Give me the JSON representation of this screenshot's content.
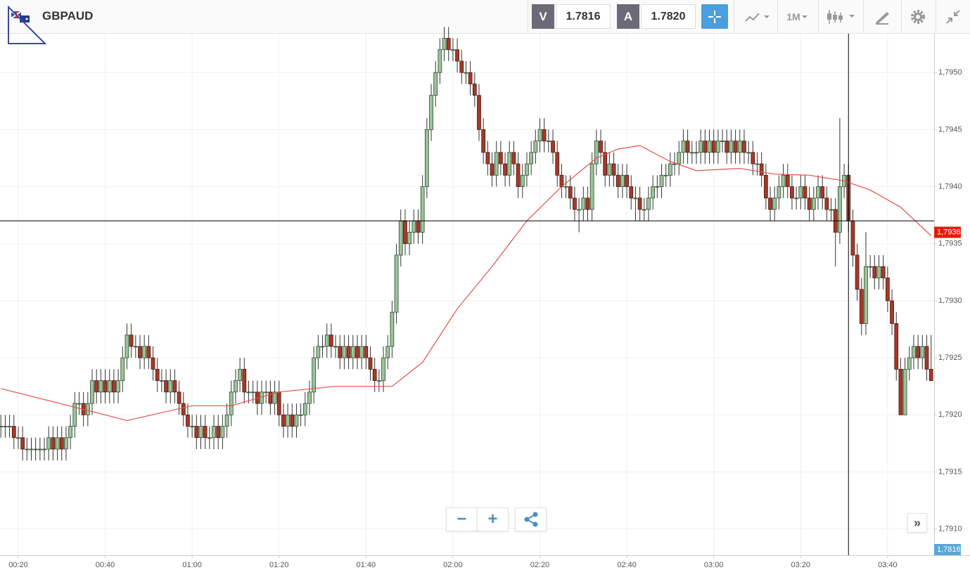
{
  "toolbar": {
    "symbol": "GBPAUD",
    "sell_label": "V",
    "sell_price": "1.7816",
    "buy_label": "A",
    "buy_price": "1.7820",
    "timeframe": "1M"
  },
  "chart_data": {
    "type": "candlestick",
    "x": [
      16,
      17,
      18,
      19,
      20,
      21,
      22,
      23,
      24,
      25,
      26,
      27,
      28,
      29,
      30,
      31,
      32,
      33,
      34,
      35,
      36,
      37,
      38,
      39,
      40,
      41,
      42,
      43,
      44,
      45,
      46,
      47,
      48,
      49,
      50,
      51,
      52,
      53,
      54,
      55,
      56,
      57,
      58,
      59,
      60,
      61,
      62,
      63,
      64,
      65,
      66,
      67,
      68,
      69,
      70,
      71,
      72,
      73,
      74,
      75,
      76,
      77,
      78,
      79,
      80,
      81,
      82,
      83,
      84,
      85,
      86,
      87,
      88,
      89,
      90,
      91,
      92,
      93,
      94,
      95,
      96,
      97,
      98,
      99,
      100,
      101,
      102,
      103,
      104,
      105,
      106,
      107,
      108,
      109,
      110,
      111,
      112,
      113,
      114,
      115,
      116,
      117,
      118,
      119,
      120,
      121,
      122,
      123,
      124,
      125,
      126,
      127,
      128,
      129,
      130,
      131,
      132,
      133,
      134,
      135,
      136,
      137,
      138,
      139,
      140,
      141,
      142,
      143,
      144,
      145,
      146,
      147,
      148,
      149,
      150,
      151,
      152,
      153,
      154,
      155,
      156,
      157,
      158,
      159,
      160,
      161,
      162,
      163,
      164,
      165,
      166,
      167,
      168,
      169,
      170,
      171,
      172,
      173,
      174,
      175,
      176,
      177,
      178,
      179,
      180,
      181,
      182,
      183,
      184,
      185,
      186,
      187,
      188,
      189,
      190,
      191,
      192,
      193,
      194,
      195,
      196,
      197,
      198,
      199,
      200,
      201,
      202,
      203,
      204,
      205,
      206,
      207,
      208,
      209,
      210,
      211,
      212,
      213,
      214,
      215,
      216,
      217,
      218,
      219,
      220,
      221,
      222,
      223,
      224,
      225,
      226,
      227,
      228,
      229,
      230
    ],
    "open": [
      1.7919,
      1.7919,
      1.7919,
      1.7919,
      1.7918,
      1.7918,
      1.7917,
      1.7917,
      1.7917,
      1.7917,
      1.7917,
      1.7917,
      1.7918,
      1.7917,
      1.7918,
      1.7917,
      1.7918,
      1.7919,
      1.7921,
      1.7921,
      1.792,
      1.7921,
      1.7923,
      1.7922,
      1.7923,
      1.7922,
      1.7923,
      1.7922,
      1.7923,
      1.7925,
      1.7927,
      1.7926,
      1.7926,
      1.7925,
      1.7926,
      1.7925,
      1.7924,
      1.7923,
      1.7923,
      1.7922,
      1.7923,
      1.7922,
      1.7921,
      1.792,
      1.7919,
      1.7919,
      1.7918,
      1.7919,
      1.7918,
      1.7918,
      1.7919,
      1.7918,
      1.7919,
      1.792,
      1.7922,
      1.7923,
      1.7924,
      1.7922,
      1.7922,
      1.7922,
      1.7921,
      1.7922,
      1.7922,
      1.7921,
      1.7922,
      1.792,
      1.7919,
      1.792,
      1.7919,
      1.792,
      1.792,
      1.7921,
      1.7922,
      1.7925,
      1.7926,
      1.7926,
      1.7927,
      1.7926,
      1.7926,
      1.7925,
      1.7926,
      1.7925,
      1.7926,
      1.7925,
      1.7926,
      1.7925,
      1.7924,
      1.7923,
      1.7923,
      1.7925,
      1.7926,
      1.7929,
      1.7934,
      1.7937,
      1.7935,
      1.7936,
      1.7937,
      1.7936,
      1.794,
      1.7945,
      1.7948,
      1.795,
      1.7952,
      1.7953,
      1.7952,
      1.7952,
      1.7951,
      1.795,
      1.795,
      1.7949,
      1.7948,
      1.7945,
      1.7943,
      1.7942,
      1.7941,
      1.7943,
      1.7942,
      1.7941,
      1.7943,
      1.7942,
      1.794,
      1.7941,
      1.7942,
      1.7943,
      1.7944,
      1.7945,
      1.7944,
      1.7944,
      1.7943,
      1.7941,
      1.794,
      1.794,
      1.7939,
      1.7938,
      1.7938,
      1.7939,
      1.7938,
      1.7942,
      1.7944,
      1.7943,
      1.7941,
      1.7942,
      1.7941,
      1.794,
      1.7941,
      1.794,
      1.7939,
      1.7939,
      1.7938,
      1.7938,
      1.7939,
      1.794,
      1.794,
      1.7941,
      1.7941,
      1.7942,
      1.7942,
      1.7943,
      1.7944,
      1.7943,
      1.7943,
      1.7943,
      1.7944,
      1.7943,
      1.7944,
      1.7943,
      1.7944,
      1.7944,
      1.7943,
      1.7944,
      1.7943,
      1.7944,
      1.7943,
      1.7943,
      1.7942,
      1.7942,
      1.7941,
      1.7939,
      1.7938,
      1.7939,
      1.794,
      1.7941,
      1.794,
      1.7939,
      1.7939,
      1.794,
      1.7939,
      1.7938,
      1.7939,
      1.794,
      1.7939,
      1.7938,
      1.7938,
      1.7936,
      1.794,
      1.7941,
      1.7937,
      1.7934,
      1.7931,
      1.7928,
      1.7933,
      1.7933,
      1.7932,
      1.7933,
      1.7932,
      1.793,
      1.7928,
      1.7924,
      1.792,
      1.7924,
      1.7925,
      1.7926,
      1.7925,
      1.7926,
      1.7924
    ],
    "high": [
      1.792,
      1.792,
      1.792,
      1.792,
      1.7919,
      1.7919,
      1.7918,
      1.7918,
      1.7918,
      1.7918,
      1.7918,
      1.7919,
      1.7919,
      1.7919,
      1.7919,
      1.7919,
      1.792,
      1.7922,
      1.7922,
      1.7922,
      1.7922,
      1.7924,
      1.7924,
      1.7924,
      1.7924,
      1.7924,
      1.7924,
      1.7924,
      1.7926,
      1.7928,
      1.7928,
      1.7927,
      1.7927,
      1.7927,
      1.7927,
      1.7926,
      1.7925,
      1.7924,
      1.7924,
      1.7924,
      1.7924,
      1.7923,
      1.7922,
      1.7921,
      1.792,
      1.792,
      1.792,
      1.792,
      1.7919,
      1.792,
      1.792,
      1.792,
      1.7921,
      1.7923,
      1.7924,
      1.7925,
      1.7925,
      1.7923,
      1.7923,
      1.7923,
      1.7923,
      1.7923,
      1.7923,
      1.7923,
      1.7923,
      1.7921,
      1.7921,
      1.7921,
      1.7921,
      1.7921,
      1.7922,
      1.7923,
      1.7926,
      1.7927,
      1.7927,
      1.7928,
      1.7928,
      1.7927,
      1.7927,
      1.7927,
      1.7927,
      1.7927,
      1.7927,
      1.7927,
      1.7927,
      1.7926,
      1.7925,
      1.7924,
      1.7926,
      1.7927,
      1.793,
      1.7935,
      1.7938,
      1.7938,
      1.7937,
      1.7938,
      1.7938,
      1.7941,
      1.7946,
      1.7949,
      1.7951,
      1.7953,
      1.7954,
      1.7954,
      1.7953,
      1.7953,
      1.7952,
      1.7951,
      1.7951,
      1.795,
      1.7949,
      1.7946,
      1.7944,
      1.7943,
      1.7944,
      1.7944,
      1.7943,
      1.7944,
      1.7944,
      1.7943,
      1.7942,
      1.7943,
      1.7944,
      1.7945,
      1.7946,
      1.7946,
      1.7945,
      1.7945,
      1.7944,
      1.7942,
      1.7941,
      1.7941,
      1.794,
      1.7939,
      1.794,
      1.794,
      1.7943,
      1.7945,
      1.7945,
      1.7944,
      1.7943,
      1.7943,
      1.7942,
      1.7942,
      1.7942,
      1.7941,
      1.794,
      1.794,
      1.7939,
      1.794,
      1.7941,
      1.7941,
      1.7942,
      1.7942,
      1.7943,
      1.7943,
      1.7944,
      1.7945,
      1.7945,
      1.7944,
      1.7944,
      1.7945,
      1.7945,
      1.7945,
      1.7945,
      1.7945,
      1.7945,
      1.7945,
      1.7945,
      1.7945,
      1.7945,
      1.7945,
      1.7944,
      1.7944,
      1.7943,
      1.7943,
      1.7942,
      1.794,
      1.794,
      1.7941,
      1.7942,
      1.7942,
      1.7941,
      1.794,
      1.7941,
      1.7941,
      1.794,
      1.794,
      1.7941,
      1.7941,
      1.794,
      1.7939,
      1.7939,
      1.7946,
      1.7942,
      1.7942,
      1.7938,
      1.7935,
      1.7932,
      1.7936,
      1.7934,
      1.7934,
      1.7934,
      1.7934,
      1.7933,
      1.7931,
      1.7929,
      1.7925,
      1.7925,
      1.7926,
      1.7927,
      1.7927,
      1.7927,
      1.7927,
      1.7927
    ],
    "low": [
      1.7918,
      1.7918,
      1.7918,
      1.7917,
      1.7917,
      1.7916,
      1.7916,
      1.7916,
      1.7916,
      1.7916,
      1.7916,
      1.7916,
      1.7916,
      1.7916,
      1.7916,
      1.7916,
      1.7917,
      1.7918,
      1.792,
      1.7919,
      1.7919,
      1.792,
      1.7921,
      1.7921,
      1.7921,
      1.7921,
      1.7921,
      1.7921,
      1.7922,
      1.7924,
      1.7925,
      1.7925,
      1.7924,
      1.7924,
      1.7924,
      1.7923,
      1.7922,
      1.7922,
      1.7921,
      1.7921,
      1.7921,
      1.792,
      1.7919,
      1.7918,
      1.7918,
      1.7917,
      1.7917,
      1.7917,
      1.7917,
      1.7917,
      1.7917,
      1.7917,
      1.7918,
      1.7919,
      1.7921,
      1.7922,
      1.7921,
      1.7921,
      1.7921,
      1.792,
      1.792,
      1.7921,
      1.792,
      1.792,
      1.7919,
      1.7918,
      1.7918,
      1.7918,
      1.7918,
      1.7919,
      1.7919,
      1.792,
      1.7921,
      1.7924,
      1.7925,
      1.7925,
      1.7925,
      1.7925,
      1.7924,
      1.7924,
      1.7924,
      1.7924,
      1.7924,
      1.7924,
      1.7924,
      1.7923,
      1.7922,
      1.7922,
      1.7922,
      1.7924,
      1.7925,
      1.7928,
      1.7933,
      1.7934,
      1.7934,
      1.7935,
      1.7935,
      1.7935,
      1.7939,
      1.7944,
      1.7947,
      1.7949,
      1.7951,
      1.7951,
      1.7951,
      1.795,
      1.7949,
      1.7949,
      1.7948,
      1.7947,
      1.7944,
      1.7942,
      1.7941,
      1.794,
      1.794,
      1.7941,
      1.794,
      1.794,
      1.7941,
      1.7939,
      1.7939,
      1.794,
      1.7941,
      1.7942,
      1.7943,
      1.7943,
      1.7943,
      1.7942,
      1.794,
      1.7939,
      1.7939,
      1.7938,
      1.7937,
      1.7936,
      1.7937,
      1.7937,
      1.7937,
      1.7941,
      1.7942,
      1.794,
      1.794,
      1.794,
      1.7939,
      1.7939,
      1.7939,
      1.7938,
      1.7937,
      1.7937,
      1.7937,
      1.7937,
      1.7938,
      1.7939,
      1.7939,
      1.794,
      1.794,
      1.7941,
      1.7941,
      1.7942,
      1.7942,
      1.7942,
      1.7942,
      1.7942,
      1.7942,
      1.7942,
      1.7942,
      1.7942,
      1.7943,
      1.7942,
      1.7942,
      1.7942,
      1.7942,
      1.7942,
      1.7942,
      1.7941,
      1.7941,
      1.794,
      1.7938,
      1.7937,
      1.7937,
      1.7938,
      1.7939,
      1.7939,
      1.7938,
      1.7938,
      1.7938,
      1.7938,
      1.7937,
      1.7937,
      1.7938,
      1.7938,
      1.7937,
      1.7937,
      1.7933,
      1.7935,
      1.7939,
      1.7936,
      1.7933,
      1.793,
      1.7927,
      1.7927,
      1.7932,
      1.7931,
      1.7931,
      1.7931,
      1.7929,
      1.7927,
      1.7923,
      1.792,
      1.792,
      1.7923,
      1.7924,
      1.7924,
      1.7924,
      1.7923,
      1.7923
    ],
    "close": [
      1.7919,
      1.7919,
      1.7919,
      1.7918,
      1.7918,
      1.7917,
      1.7917,
      1.7917,
      1.7917,
      1.7917,
      1.7917,
      1.7918,
      1.7917,
      1.7918,
      1.7917,
      1.7918,
      1.7919,
      1.7921,
      1.7921,
      1.792,
      1.7921,
      1.7923,
      1.7922,
      1.7923,
      1.7922,
      1.7923,
      1.7922,
      1.7923,
      1.7925,
      1.7927,
      1.7926,
      1.7926,
      1.7925,
      1.7926,
      1.7925,
      1.7924,
      1.7923,
      1.7923,
      1.7922,
      1.7923,
      1.7922,
      1.7921,
      1.792,
      1.7919,
      1.7919,
      1.7918,
      1.7919,
      1.7918,
      1.7918,
      1.7919,
      1.7918,
      1.7919,
      1.792,
      1.7922,
      1.7923,
      1.7924,
      1.7922,
      1.7922,
      1.7922,
      1.7921,
      1.7922,
      1.7922,
      1.7921,
      1.7922,
      1.792,
      1.7919,
      1.792,
      1.7919,
      1.792,
      1.792,
      1.7921,
      1.7922,
      1.7925,
      1.7926,
      1.7926,
      1.7927,
      1.7926,
      1.7926,
      1.7925,
      1.7926,
      1.7925,
      1.7926,
      1.7925,
      1.7926,
      1.7925,
      1.7924,
      1.7923,
      1.7923,
      1.7925,
      1.7926,
      1.7929,
      1.7934,
      1.7937,
      1.7935,
      1.7936,
      1.7937,
      1.7936,
      1.794,
      1.7945,
      1.7948,
      1.795,
      1.7952,
      1.7953,
      1.7952,
      1.7952,
      1.7951,
      1.795,
      1.795,
      1.7949,
      1.7948,
      1.7945,
      1.7943,
      1.7942,
      1.7941,
      1.7943,
      1.7942,
      1.7941,
      1.7943,
      1.7942,
      1.794,
      1.7941,
      1.7942,
      1.7943,
      1.7944,
      1.7945,
      1.7944,
      1.7944,
      1.7943,
      1.7941,
      1.794,
      1.794,
      1.7939,
      1.7938,
      1.7938,
      1.7939,
      1.7938,
      1.7942,
      1.7944,
      1.7943,
      1.7941,
      1.7942,
      1.7941,
      1.794,
      1.7941,
      1.794,
      1.7939,
      1.7939,
      1.7938,
      1.7938,
      1.7939,
      1.794,
      1.794,
      1.7941,
      1.7941,
      1.7942,
      1.7942,
      1.7943,
      1.7944,
      1.7943,
      1.7943,
      1.7943,
      1.7944,
      1.7943,
      1.7944,
      1.7943,
      1.7944,
      1.7944,
      1.7943,
      1.7944,
      1.7943,
      1.7944,
      1.7943,
      1.7943,
      1.7942,
      1.7942,
      1.7941,
      1.7939,
      1.7938,
      1.7939,
      1.794,
      1.7941,
      1.794,
      1.7939,
      1.7939,
      1.794,
      1.7939,
      1.7938,
      1.7939,
      1.794,
      1.7939,
      1.7938,
      1.7938,
      1.7936,
      1.794,
      1.7941,
      1.7937,
      1.7934,
      1.7931,
      1.7928,
      1.7933,
      1.7933,
      1.7932,
      1.7933,
      1.7932,
      1.793,
      1.7928,
      1.7924,
      1.792,
      1.7924,
      1.7925,
      1.7926,
      1.7925,
      1.7926,
      1.7924,
      1.7923
    ],
    "up_color": "#9cc49a",
    "down_color": "#a33a2a",
    "overlay": {
      "color": "#e0504a",
      "x": [
        16,
        40,
        45,
        60,
        69,
        80,
        93,
        106,
        113,
        121,
        129,
        137,
        145,
        153,
        158,
        163,
        170,
        176,
        186,
        194,
        202,
        210,
        216,
        223,
        230
      ],
      "values": [
        1.79223,
        1.792,
        1.79195,
        1.79208,
        1.79208,
        1.7922,
        1.79225,
        1.79225,
        1.79246,
        1.79293,
        1.7933,
        1.7937,
        1.794,
        1.79425,
        1.79433,
        1.79436,
        1.79422,
        1.79414,
        1.79416,
        1.79411,
        1.7941,
        1.79405,
        1.79397,
        1.79382,
        1.79357
      ]
    },
    "xlim": [
      15.8,
      230.7
    ],
    "ylim": [
      1.79077,
      1.79534
    ],
    "xticks": [
      {
        "value": 20,
        "label": "00:20"
      },
      {
        "value": 40,
        "label": "00:40"
      },
      {
        "value": 60,
        "label": "01:00"
      },
      {
        "value": 80,
        "label": "01:20"
      },
      {
        "value": 100,
        "label": "01:40"
      },
      {
        "value": 120,
        "label": "02:00"
      },
      {
        "value": 140,
        "label": "02:20"
      },
      {
        "value": 160,
        "label": "02:40"
      },
      {
        "value": 180,
        "label": "03:00"
      },
      {
        "value": 200,
        "label": "03:20"
      },
      {
        "value": 220,
        "label": "03:40"
      }
    ],
    "yticks": [
      {
        "value": 1.791,
        "label": "1,7910"
      },
      {
        "value": 1.7915,
        "label": "1,7915"
      },
      {
        "value": 1.792,
        "label": "1,7920"
      },
      {
        "value": 1.7925,
        "label": "1,7925"
      },
      {
        "value": 1.793,
        "label": "1,7930"
      },
      {
        "value": 1.7935,
        "label": "1,7935"
      },
      {
        "value": 1.794,
        "label": "1,7940"
      },
      {
        "value": 1.7945,
        "label": "1,7945"
      },
      {
        "value": 1.795,
        "label": "1,7950"
      }
    ],
    "grid": true,
    "crosshair": {
      "x": 211,
      "y": 1.7937
    },
    "price_tag": {
      "value": 1.7936,
      "label": "1,7936",
      "color": "#e31b0c"
    },
    "bid_tag": {
      "label": "1,7816",
      "color": "#5aa6d8"
    }
  }
}
